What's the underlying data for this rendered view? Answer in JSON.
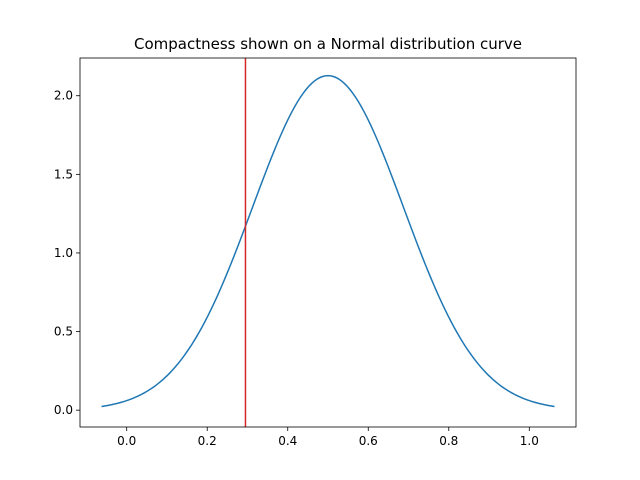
{
  "chart_data": {
    "type": "line",
    "title": "Compactness shown on a Normal distribution curve",
    "xlabel": "",
    "ylabel": "",
    "xlim": [
      -0.116,
      1.116
    ],
    "ylim": [
      -0.107,
      2.24
    ],
    "xticks": [
      0.0,
      0.2,
      0.4,
      0.6,
      0.8,
      1.0
    ],
    "xtick_labels": [
      "0.0",
      "0.2",
      "0.4",
      "0.6",
      "0.8",
      "1.0"
    ],
    "yticks": [
      0.0,
      0.5,
      1.0,
      1.5,
      2.0
    ],
    "ytick_labels": [
      "0.0",
      "0.5",
      "1.0",
      "1.5",
      "2.0"
    ],
    "grid": false,
    "series": [
      {
        "color": "#1f77b4",
        "distribution": {
          "mean": 0.5,
          "std": 0.1875
        },
        "x_range": [
          -0.0625,
          1.0625
        ]
      }
    ],
    "vline": {
      "x": 0.295,
      "color": "#d62728"
    }
  }
}
